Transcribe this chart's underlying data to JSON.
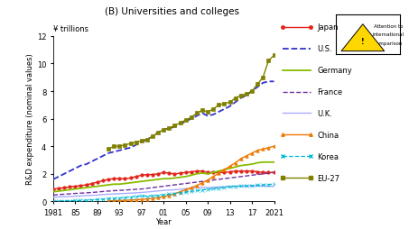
{
  "title": "(B) Universities and colleges",
  "ylabel": "R&D expenditure (nominal values)",
  "xlabel": "Year",
  "yen_label": "¥ trillions",
  "ylim": [
    0,
    12
  ],
  "yticks": [
    0,
    2,
    4,
    6,
    8,
    10,
    12
  ],
  "xtick_labels": [
    "1981",
    "85",
    "89",
    "93",
    "97",
    "01",
    "05",
    "09",
    "13",
    "17",
    "2021"
  ],
  "background_color": "#ffffff",
  "series": {
    "Japan": {
      "color": "#e2231a",
      "linestyle": "-",
      "marker": "o",
      "markersize": 2.5,
      "linewidth": 1.0,
      "years": [
        1981,
        1982,
        1983,
        1984,
        1985,
        1986,
        1987,
        1988,
        1989,
        1990,
        1991,
        1992,
        1993,
        1994,
        1995,
        1996,
        1997,
        1998,
        1999,
        2000,
        2001,
        2002,
        2003,
        2004,
        2005,
        2006,
        2007,
        2008,
        2009,
        2010,
        2011,
        2012,
        2013,
        2014,
        2015,
        2016,
        2017,
        2018,
        2019,
        2020,
        2021
      ],
      "values": [
        0.9,
        0.95,
        1.0,
        1.05,
        1.1,
        1.15,
        1.2,
        1.3,
        1.4,
        1.5,
        1.6,
        1.65,
        1.65,
        1.65,
        1.7,
        1.8,
        1.9,
        1.95,
        1.95,
        2.0,
        2.1,
        2.05,
        2.0,
        2.05,
        2.1,
        2.15,
        2.2,
        2.2,
        2.1,
        2.1,
        2.1,
        2.1,
        2.15,
        2.2,
        2.2,
        2.2,
        2.2,
        2.15,
        2.1,
        2.1,
        2.1
      ]
    },
    "U.S.": {
      "color": "#3333cc",
      "linestyle": "--",
      "marker": null,
      "markersize": 0,
      "linewidth": 1.3,
      "years": [
        1981,
        1982,
        1983,
        1984,
        1985,
        1986,
        1987,
        1988,
        1989,
        1990,
        1991,
        1992,
        1993,
        1994,
        1995,
        1996,
        1997,
        1998,
        1999,
        2000,
        2001,
        2002,
        2003,
        2004,
        2005,
        2006,
        2007,
        2008,
        2009,
        2010,
        2011,
        2012,
        2013,
        2014,
        2015,
        2016,
        2017,
        2018,
        2019,
        2020,
        2021
      ],
      "values": [
        1.6,
        1.8,
        2.0,
        2.2,
        2.4,
        2.6,
        2.7,
        2.9,
        3.1,
        3.3,
        3.5,
        3.6,
        3.7,
        3.8,
        3.9,
        4.1,
        4.3,
        4.5,
        4.7,
        5.0,
        5.2,
        5.3,
        5.4,
        5.6,
        5.8,
        6.0,
        6.2,
        6.4,
        6.2,
        6.3,
        6.5,
        6.7,
        6.9,
        7.2,
        7.5,
        7.7,
        8.0,
        8.3,
        8.6,
        8.7,
        8.7
      ]
    },
    "Germany": {
      "color": "#88bb00",
      "linestyle": "-",
      "marker": null,
      "markersize": 0,
      "linewidth": 1.3,
      "years": [
        1981,
        1982,
        1983,
        1984,
        1985,
        1986,
        1987,
        1988,
        1989,
        1990,
        1991,
        1992,
        1993,
        1994,
        1995,
        1996,
        1997,
        1998,
        1999,
        2000,
        2001,
        2002,
        2003,
        2004,
        2005,
        2006,
        2007,
        2008,
        2009,
        2010,
        2011,
        2012,
        2013,
        2014,
        2015,
        2016,
        2017,
        2018,
        2019,
        2020,
        2021
      ],
      "values": [
        0.7,
        0.75,
        0.8,
        0.85,
        0.9,
        0.95,
        1.0,
        1.05,
        1.1,
        1.15,
        1.2,
        1.25,
        1.25,
        1.3,
        1.35,
        1.4,
        1.45,
        1.5,
        1.55,
        1.6,
        1.65,
        1.65,
        1.7,
        1.75,
        1.8,
        1.9,
        2.0,
        2.05,
        2.0,
        2.1,
        2.2,
        2.3,
        2.4,
        2.5,
        2.6,
        2.65,
        2.7,
        2.8,
        2.85,
        2.85,
        2.85
      ]
    },
    "France": {
      "color": "#7030a0",
      "linestyle": "--",
      "marker": null,
      "markersize": 0,
      "linewidth": 1.0,
      "years": [
        1981,
        1982,
        1983,
        1984,
        1985,
        1986,
        1987,
        1988,
        1989,
        1990,
        1991,
        1992,
        1993,
        1994,
        1995,
        1996,
        1997,
        1998,
        1999,
        2000,
        2001,
        2002,
        2003,
        2004,
        2005,
        2006,
        2007,
        2008,
        2009,
        2010,
        2011,
        2012,
        2013,
        2014,
        2015,
        2016,
        2017,
        2018,
        2019,
        2020,
        2021
      ],
      "values": [
        0.45,
        0.5,
        0.52,
        0.55,
        0.58,
        0.6,
        0.62,
        0.65,
        0.68,
        0.72,
        0.75,
        0.78,
        0.8,
        0.82,
        0.85,
        0.88,
        0.9,
        0.95,
        1.0,
        1.05,
        1.1,
        1.15,
        1.2,
        1.25,
        1.3,
        1.35,
        1.4,
        1.45,
        1.5,
        1.55,
        1.6,
        1.65,
        1.7,
        1.75,
        1.8,
        1.85,
        1.9,
        1.95,
        2.0,
        2.05,
        2.1
      ]
    },
    "U.K.": {
      "color": "#aaaaff",
      "linestyle": "-",
      "marker": null,
      "markersize": 0,
      "linewidth": 1.0,
      "years": [
        1981,
        1982,
        1983,
        1984,
        1985,
        1986,
        1987,
        1988,
        1989,
        1990,
        1991,
        1992,
        1993,
        1994,
        1995,
        1996,
        1997,
        1998,
        1999,
        2000,
        2001,
        2002,
        2003,
        2004,
        2005,
        2006,
        2007,
        2008,
        2009,
        2010,
        2011,
        2012,
        2013,
        2014,
        2015,
        2016,
        2017,
        2018,
        2019,
        2020,
        2021
      ],
      "values": [
        0.3,
        0.32,
        0.34,
        0.36,
        0.38,
        0.4,
        0.42,
        0.44,
        0.46,
        0.5,
        0.52,
        0.54,
        0.56,
        0.58,
        0.6,
        0.62,
        0.65,
        0.68,
        0.72,
        0.76,
        0.8,
        0.82,
        0.85,
        0.88,
        0.92,
        0.95,
        1.0,
        1.02,
        1.0,
        1.02,
        1.05,
        1.05,
        1.08,
        1.1,
        1.1,
        1.1,
        1.12,
        1.12,
        1.12,
        1.1,
        1.1
      ]
    },
    "China": {
      "color": "#f07800",
      "linestyle": "-",
      "marker": "^",
      "markersize": 2.5,
      "linewidth": 1.0,
      "years": [
        1991,
        1992,
        1993,
        1994,
        1995,
        1996,
        1997,
        1998,
        1999,
        2000,
        2001,
        2002,
        2003,
        2004,
        2005,
        2006,
        2007,
        2008,
        2009,
        2010,
        2011,
        2012,
        2013,
        2014,
        2015,
        2016,
        2017,
        2018,
        2019,
        2020,
        2021
      ],
      "values": [
        0.05,
        0.06,
        0.07,
        0.08,
        0.1,
        0.12,
        0.15,
        0.18,
        0.22,
        0.28,
        0.35,
        0.45,
        0.55,
        0.7,
        0.85,
        1.0,
        1.15,
        1.35,
        1.55,
        1.8,
        2.05,
        2.3,
        2.55,
        2.8,
        3.1,
        3.3,
        3.5,
        3.7,
        3.8,
        3.9,
        4.0
      ]
    },
    "Korea": {
      "color": "#00b8d4",
      "linestyle": "--",
      "marker": "x",
      "markersize": 2.5,
      "linewidth": 0.9,
      "years": [
        1981,
        1982,
        1983,
        1984,
        1985,
        1986,
        1987,
        1988,
        1989,
        1990,
        1991,
        1992,
        1993,
        1994,
        1995,
        1996,
        1997,
        1998,
        1999,
        2000,
        2001,
        2002,
        2003,
        2004,
        2005,
        2006,
        2007,
        2008,
        2009,
        2010,
        2011,
        2012,
        2013,
        2014,
        2015,
        2016,
        2017,
        2018,
        2019,
        2020,
        2021
      ],
      "values": [
        0.02,
        0.03,
        0.04,
        0.05,
        0.06,
        0.07,
        0.09,
        0.11,
        0.13,
        0.16,
        0.19,
        0.22,
        0.25,
        0.28,
        0.32,
        0.36,
        0.4,
        0.38,
        0.4,
        0.44,
        0.48,
        0.53,
        0.58,
        0.62,
        0.67,
        0.72,
        0.78,
        0.84,
        0.87,
        0.92,
        0.97,
        1.02,
        1.07,
        1.1,
        1.12,
        1.14,
        1.16,
        1.18,
        1.2,
        1.22,
        1.25
      ]
    },
    "EU-27": {
      "color": "#808000",
      "linestyle": "-",
      "marker": "s",
      "markersize": 3.0,
      "linewidth": 1.0,
      "years": [
        1991,
        1992,
        1993,
        1994,
        1995,
        1996,
        1997,
        1998,
        1999,
        2000,
        2001,
        2002,
        2003,
        2004,
        2005,
        2006,
        2007,
        2008,
        2009,
        2010,
        2011,
        2012,
        2013,
        2014,
        2015,
        2016,
        2017,
        2018,
        2019,
        2020,
        2021
      ],
      "values": [
        3.8,
        4.0,
        4.0,
        4.1,
        4.2,
        4.3,
        4.4,
        4.5,
        4.7,
        5.0,
        5.2,
        5.3,
        5.5,
        5.7,
        5.9,
        6.1,
        6.4,
        6.6,
        6.5,
        6.7,
        7.0,
        7.1,
        7.2,
        7.5,
        7.7,
        7.8,
        8.0,
        8.5,
        9.0,
        10.2,
        10.6
      ]
    }
  },
  "legend_order": [
    "Japan",
    "U.S.",
    "Germany",
    "France",
    "U.K.",
    "China",
    "Korea",
    "EU-27"
  ],
  "warning_text1": "Attention to",
  "warning_text2": "international",
  "warning_text3": "comparison"
}
